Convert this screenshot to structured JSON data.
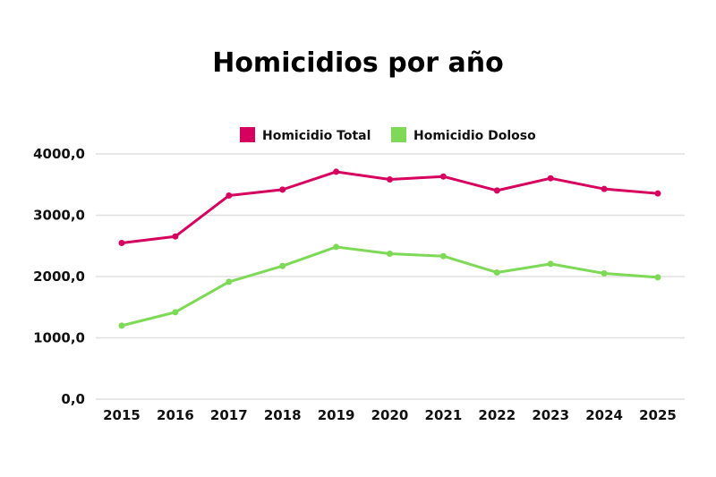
{
  "chart_data": {
    "type": "line",
    "title": "Homicidios por año",
    "xlabel": "",
    "ylabel": "",
    "categories": [
      "2015",
      "2016",
      "2017",
      "2018",
      "2019",
      "2020",
      "2021",
      "2022",
      "2023",
      "2024",
      "2025"
    ],
    "ylim": [
      0,
      4000
    ],
    "yticks": [
      0,
      1000,
      2000,
      3000,
      4000
    ],
    "ytick_labels": [
      "0,0",
      "1000,0",
      "2000,0",
      "3000,0",
      "4000,0"
    ],
    "grid": true,
    "legend_position": "top",
    "series": [
      {
        "name": "Homicidio Total",
        "color": "#d6015f",
        "values": [
          2547,
          2654,
          3321,
          3418,
          3709,
          3584,
          3632,
          3403,
          3603,
          3428,
          3355
        ]
      },
      {
        "name": "Homicidio Doloso",
        "color": "#7ed957",
        "values": [
          1199,
          1418,
          1914,
          2172,
          2483,
          2372,
          2333,
          2066,
          2206,
          2051,
          1987
        ]
      }
    ]
  }
}
